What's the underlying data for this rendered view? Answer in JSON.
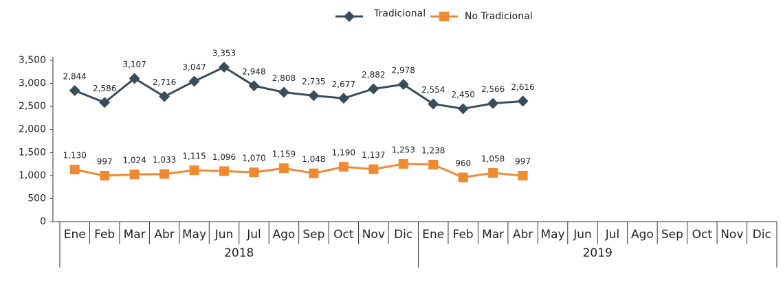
{
  "chart_data": {
    "type": "line",
    "categories": [
      "Ene",
      "Feb",
      "Mar",
      "Abr",
      "May",
      "Jun",
      "Jul",
      "Ago",
      "Sep",
      "Oct",
      "Nov",
      "Dic",
      "Ene",
      "Feb",
      "Mar",
      "Abr",
      "May",
      "Jun",
      "Jul",
      "Ago",
      "Sep",
      "Oct",
      "Nov",
      "Dic"
    ],
    "x_groups": [
      "2018",
      "2019"
    ],
    "series": [
      {
        "name": "Tradicional",
        "color": "#384d59",
        "marker": "diamond",
        "values": [
          2844,
          2586,
          3107,
          2716,
          3047,
          3353,
          2948,
          2808,
          2735,
          2677,
          2882,
          2978,
          2554,
          2450,
          2566,
          2616,
          null,
          null,
          null,
          null,
          null,
          null,
          null,
          null
        ],
        "value_labels": [
          "2,844",
          "2,586",
          "3,107",
          "2,716",
          "3,047",
          "3,353",
          "2,948",
          "2,808",
          "2,735",
          "2,677",
          "2,882",
          "2,978",
          "2,554",
          "2,450",
          "2,566",
          "2,616",
          null,
          null,
          null,
          null,
          null,
          null,
          null,
          null
        ]
      },
      {
        "name": "No Tradicional",
        "color": "#f08a32",
        "marker": "square",
        "values": [
          1130,
          997,
          1024,
          1033,
          1115,
          1096,
          1070,
          1159,
          1048,
          1190,
          1137,
          1253,
          1238,
          960,
          1058,
          997,
          null,
          null,
          null,
          null,
          null,
          null,
          null,
          null
        ],
        "value_labels": [
          "1,130",
          "997",
          "1,024",
          "1,033",
          "1,115",
          "1,096",
          "1,070",
          "1,159",
          "1,048",
          "1,190",
          "1,137",
          "1,253",
          "1,238",
          "960",
          "1,058",
          "997",
          null,
          null,
          null,
          null,
          null,
          null,
          null,
          null
        ]
      }
    ],
    "ylim": [
      0,
      3500
    ],
    "yticks": [
      0,
      500,
      {
        "value": 1000,
        "label": "1,000"
      },
      {
        "value": 1500,
        "label": "1,500"
      },
      {
        "value": 2000,
        "label": "2,000"
      },
      {
        "value": 2500,
        "label": "2,500"
      },
      {
        "value": 3000,
        "label": "3,000"
      },
      {
        "value": 3500,
        "label": "3,500"
      }
    ],
    "legend": "top"
  }
}
